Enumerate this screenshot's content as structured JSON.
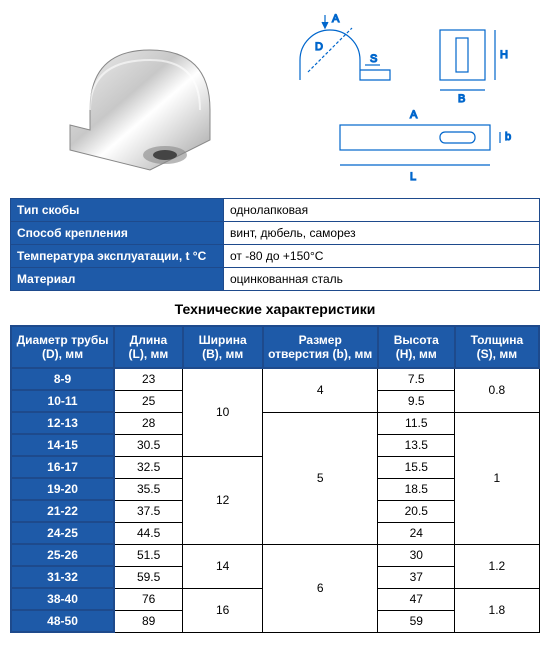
{
  "info": {
    "rows": [
      {
        "key": "Тип скобы",
        "value": "однолапковая"
      },
      {
        "key": "Способ крепления",
        "value": "винт, дюбель, саморез"
      },
      {
        "key": "Температура эксплуатации, t °С",
        "value": "от -80 до +150°С"
      },
      {
        "key": "Материал",
        "value": "оцинкованная сталь"
      }
    ],
    "key_bg": "#1e5aa8",
    "border": "#1e4a8c"
  },
  "spec": {
    "title": "Технические характеристики",
    "header_bg": "#1e5aa8",
    "header_fg": "#ffffff",
    "columns": [
      "Диаметр трубы (D), мм",
      "Длина (L), мм",
      "Ширина (B), мм",
      "Размер отверстия (b), мм",
      "Высота (H), мм",
      "Толщина (S), мм"
    ],
    "d": [
      "8-9",
      "10-11",
      "12-13",
      "14-15",
      "16-17",
      "19-20",
      "21-22",
      "24-25",
      "25-26",
      "31-32",
      "38-40",
      "48-50"
    ],
    "L": [
      "23",
      "25",
      "28",
      "30.5",
      "32.5",
      "35.5",
      "37.5",
      "44.5",
      "51.5",
      "59.5",
      "76",
      "89"
    ],
    "B": [
      {
        "val": "10",
        "span": 4
      },
      {
        "val": "12",
        "span": 4
      },
      {
        "val": "14",
        "span": 2
      },
      {
        "val": "16",
        "span": 2
      }
    ],
    "b_hole": [
      {
        "val": "4",
        "span": 2
      },
      {
        "val": "5",
        "span": 6
      },
      {
        "val": "6",
        "span": 4
      }
    ],
    "H": [
      "7.5",
      "9.5",
      "11.5",
      "13.5",
      "15.5",
      "18.5",
      "20.5",
      "24",
      "30",
      "37",
      "47",
      "59"
    ],
    "S": [
      {
        "val": "0.8",
        "span": 2
      },
      {
        "val": "1",
        "span": 6
      },
      {
        "val": "1.2",
        "span": 2
      },
      {
        "val": "1.8",
        "span": 2
      }
    ]
  },
  "diagram_labels": {
    "A": "A",
    "D": "D",
    "S": "S",
    "H": "H",
    "B": "B",
    "L": "L",
    "b": "b"
  }
}
